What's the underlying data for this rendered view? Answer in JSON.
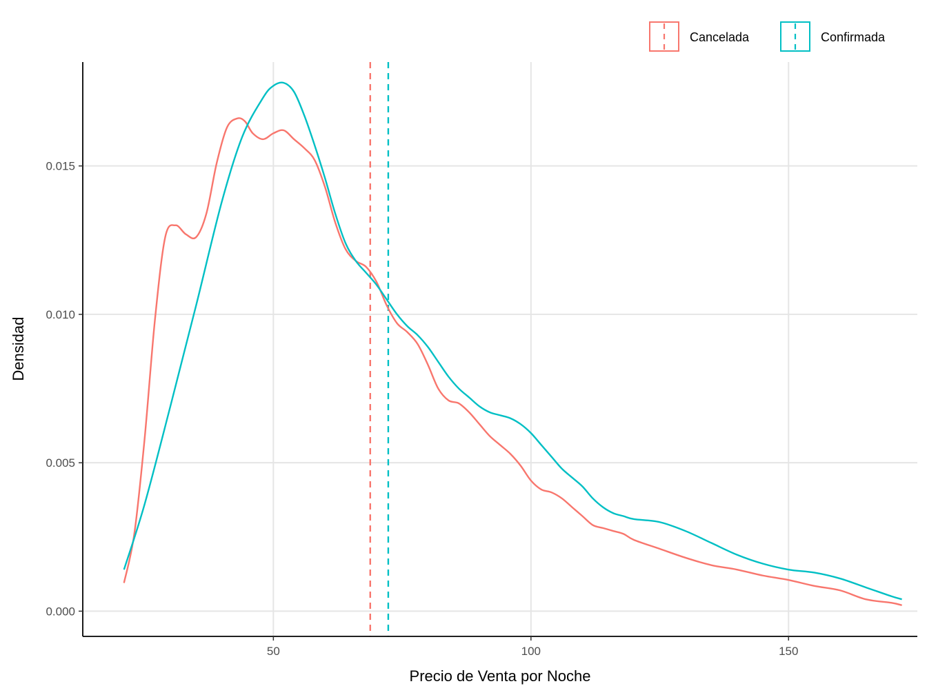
{
  "chart_data": {
    "type": "line",
    "title": "",
    "xlabel": "Precio de Venta por Noche",
    "ylabel": "Densidad",
    "xlim": [
      13,
      175
    ],
    "ylim": [
      -0.00085,
      0.0185
    ],
    "x_ticks": [
      50,
      100,
      150
    ],
    "x_tick_labels": [
      "50",
      "100",
      "150"
    ],
    "y_ticks": [
      0,
      0.005,
      0.01,
      0.015
    ],
    "y_tick_labels": [
      "0.000",
      "0.005",
      "0.010",
      "0.015"
    ],
    "grid": "major, light gray",
    "legend_position": "top-right",
    "series": [
      {
        "name": "Cancelada",
        "color": "#F8766D",
        "x": [
          21,
          23,
          25,
          27,
          29,
          31,
          33,
          35,
          37,
          39,
          41,
          43,
          44.5,
          46,
          48,
          50,
          52,
          54,
          56,
          58,
          60,
          62,
          64,
          66,
          68,
          70,
          72,
          74,
          76,
          78,
          80,
          82,
          84,
          86,
          88,
          90,
          92,
          94,
          96,
          98,
          100,
          102,
          104,
          106,
          108,
          110,
          112,
          114,
          116,
          118,
          120,
          125,
          130,
          135,
          140,
          145,
          150,
          155,
          160,
          165,
          170,
          172
        ],
        "y": [
          0.00095,
          0.0026,
          0.0058,
          0.0098,
          0.0126,
          0.013,
          0.0127,
          0.0126,
          0.0134,
          0.0151,
          0.0163,
          0.0166,
          0.0165,
          0.0161,
          0.0159,
          0.0161,
          0.0162,
          0.0159,
          0.0156,
          0.0152,
          0.0143,
          0.0131,
          0.0122,
          0.0118,
          0.0116,
          0.0111,
          0.0103,
          0.0097,
          0.0094,
          0.009,
          0.0083,
          0.0075,
          0.0071,
          0.007,
          0.0067,
          0.0063,
          0.0059,
          0.0056,
          0.0053,
          0.0049,
          0.0044,
          0.0041,
          0.004,
          0.0038,
          0.0035,
          0.0032,
          0.0029,
          0.0028,
          0.0027,
          0.0026,
          0.0024,
          0.0021,
          0.0018,
          0.00155,
          0.0014,
          0.0012,
          0.00105,
          0.00085,
          0.0007,
          0.0004,
          0.00028,
          0.0002
        ]
      },
      {
        "name": "Confirmada",
        "color": "#00BFC4",
        "x": [
          21,
          25,
          30,
          35,
          40,
          44,
          48,
          50,
          52,
          54,
          56,
          58,
          60,
          62,
          64,
          66,
          68,
          70,
          72,
          74,
          76,
          78,
          80,
          82,
          84,
          86,
          88,
          90,
          92,
          94,
          96,
          98,
          100,
          102,
          104,
          106,
          108,
          110,
          112,
          114,
          116,
          118,
          120,
          125,
          130,
          135,
          140,
          145,
          150,
          155,
          160,
          165,
          170,
          172
        ],
        "y": [
          0.0014,
          0.0036,
          0.0069,
          0.0103,
          0.0138,
          0.016,
          0.0173,
          0.0177,
          0.0178,
          0.0175,
          0.0167,
          0.0157,
          0.0146,
          0.0134,
          0.0124,
          0.0118,
          0.0114,
          0.011,
          0.0105,
          0.01,
          0.0096,
          0.0093,
          0.0089,
          0.0084,
          0.0079,
          0.0075,
          0.0072,
          0.0069,
          0.0067,
          0.0066,
          0.0065,
          0.0063,
          0.006,
          0.0056,
          0.0052,
          0.0048,
          0.0045,
          0.0042,
          0.0038,
          0.0035,
          0.0033,
          0.0032,
          0.0031,
          0.003,
          0.0027,
          0.0023,
          0.0019,
          0.0016,
          0.0014,
          0.0013,
          0.0011,
          0.0008,
          0.0005,
          0.0004
        ]
      }
    ],
    "vlines": [
      {
        "series": "Cancelada",
        "x": 68.8,
        "color": "#F8766D",
        "style": "dashed"
      },
      {
        "series": "Confirmada",
        "x": 72.3,
        "color": "#00BFC4",
        "style": "dashed"
      }
    ]
  }
}
